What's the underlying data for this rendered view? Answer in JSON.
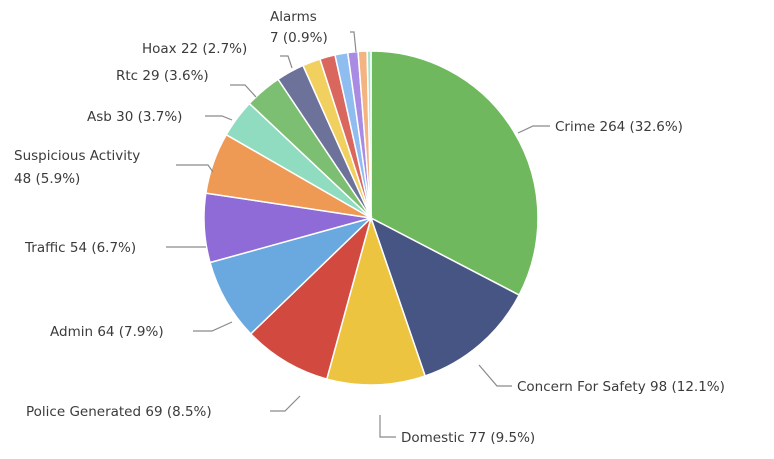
{
  "chart_data": {
    "type": "pie",
    "title": "",
    "slices": [
      {
        "label": "Crime",
        "value": 264,
        "percent": "32.6%",
        "display": "Crime 264 (32.6%)",
        "color": "#6fb85e"
      },
      {
        "label": "Concern For Safety",
        "value": 98,
        "percent": "12.1%",
        "display": "Concern For Safety 98 (12.1%)",
        "color": "#475585"
      },
      {
        "label": "Domestic",
        "value": 77,
        "percent": "9.5%",
        "display": "Domestic 77 (9.5%)",
        "color": "#ecc440"
      },
      {
        "label": "Police Generated",
        "value": 69,
        "percent": "8.5%",
        "display": "Police Generated 69 (8.5%)",
        "color": "#d1493f"
      },
      {
        "label": "Admin",
        "value": 64,
        "percent": "7.9%",
        "display": "Admin 64 (7.9%)",
        "color": "#69a9e0"
      },
      {
        "label": "Traffic",
        "value": 54,
        "percent": "6.7%",
        "display": "Traffic 54 (6.7%)",
        "color": "#8e6bd6"
      },
      {
        "label": "Suspicious Activity",
        "value": 48,
        "percent": "5.9%",
        "display_lines": [
          "Suspicious Activity",
          "48 (5.9%)"
        ],
        "color": "#ee9a55"
      },
      {
        "label": "Asb",
        "value": 30,
        "percent": "3.7%",
        "display": "Asb 30 (3.7%)",
        "color": "#8fdcc0"
      },
      {
        "label": "Rtc",
        "value": 29,
        "percent": "3.6%",
        "display": "Rtc 29 (3.6%)",
        "color": "#7dbf72"
      },
      {
        "label": "Hoax",
        "value": 22,
        "percent": "2.7%",
        "display": "Hoax 22 (2.7%)",
        "color": "#6c7299"
      },
      {
        "label": "",
        "value": 14,
        "color": "#f1d060"
      },
      {
        "label": "",
        "value": 12,
        "color": "#d9675e"
      },
      {
        "label": "",
        "value": 10,
        "color": "#8fbdf0"
      },
      {
        "label": "",
        "value": 8,
        "color": "#a98be3"
      },
      {
        "label": "Alarms",
        "value": 7,
        "percent": "0.9%",
        "display_lines": [
          "Alarms",
          "7 (0.9%)"
        ],
        "color": "#f4b482"
      },
      {
        "label": "",
        "value": 3,
        "color": "#a9e2cf"
      }
    ]
  }
}
